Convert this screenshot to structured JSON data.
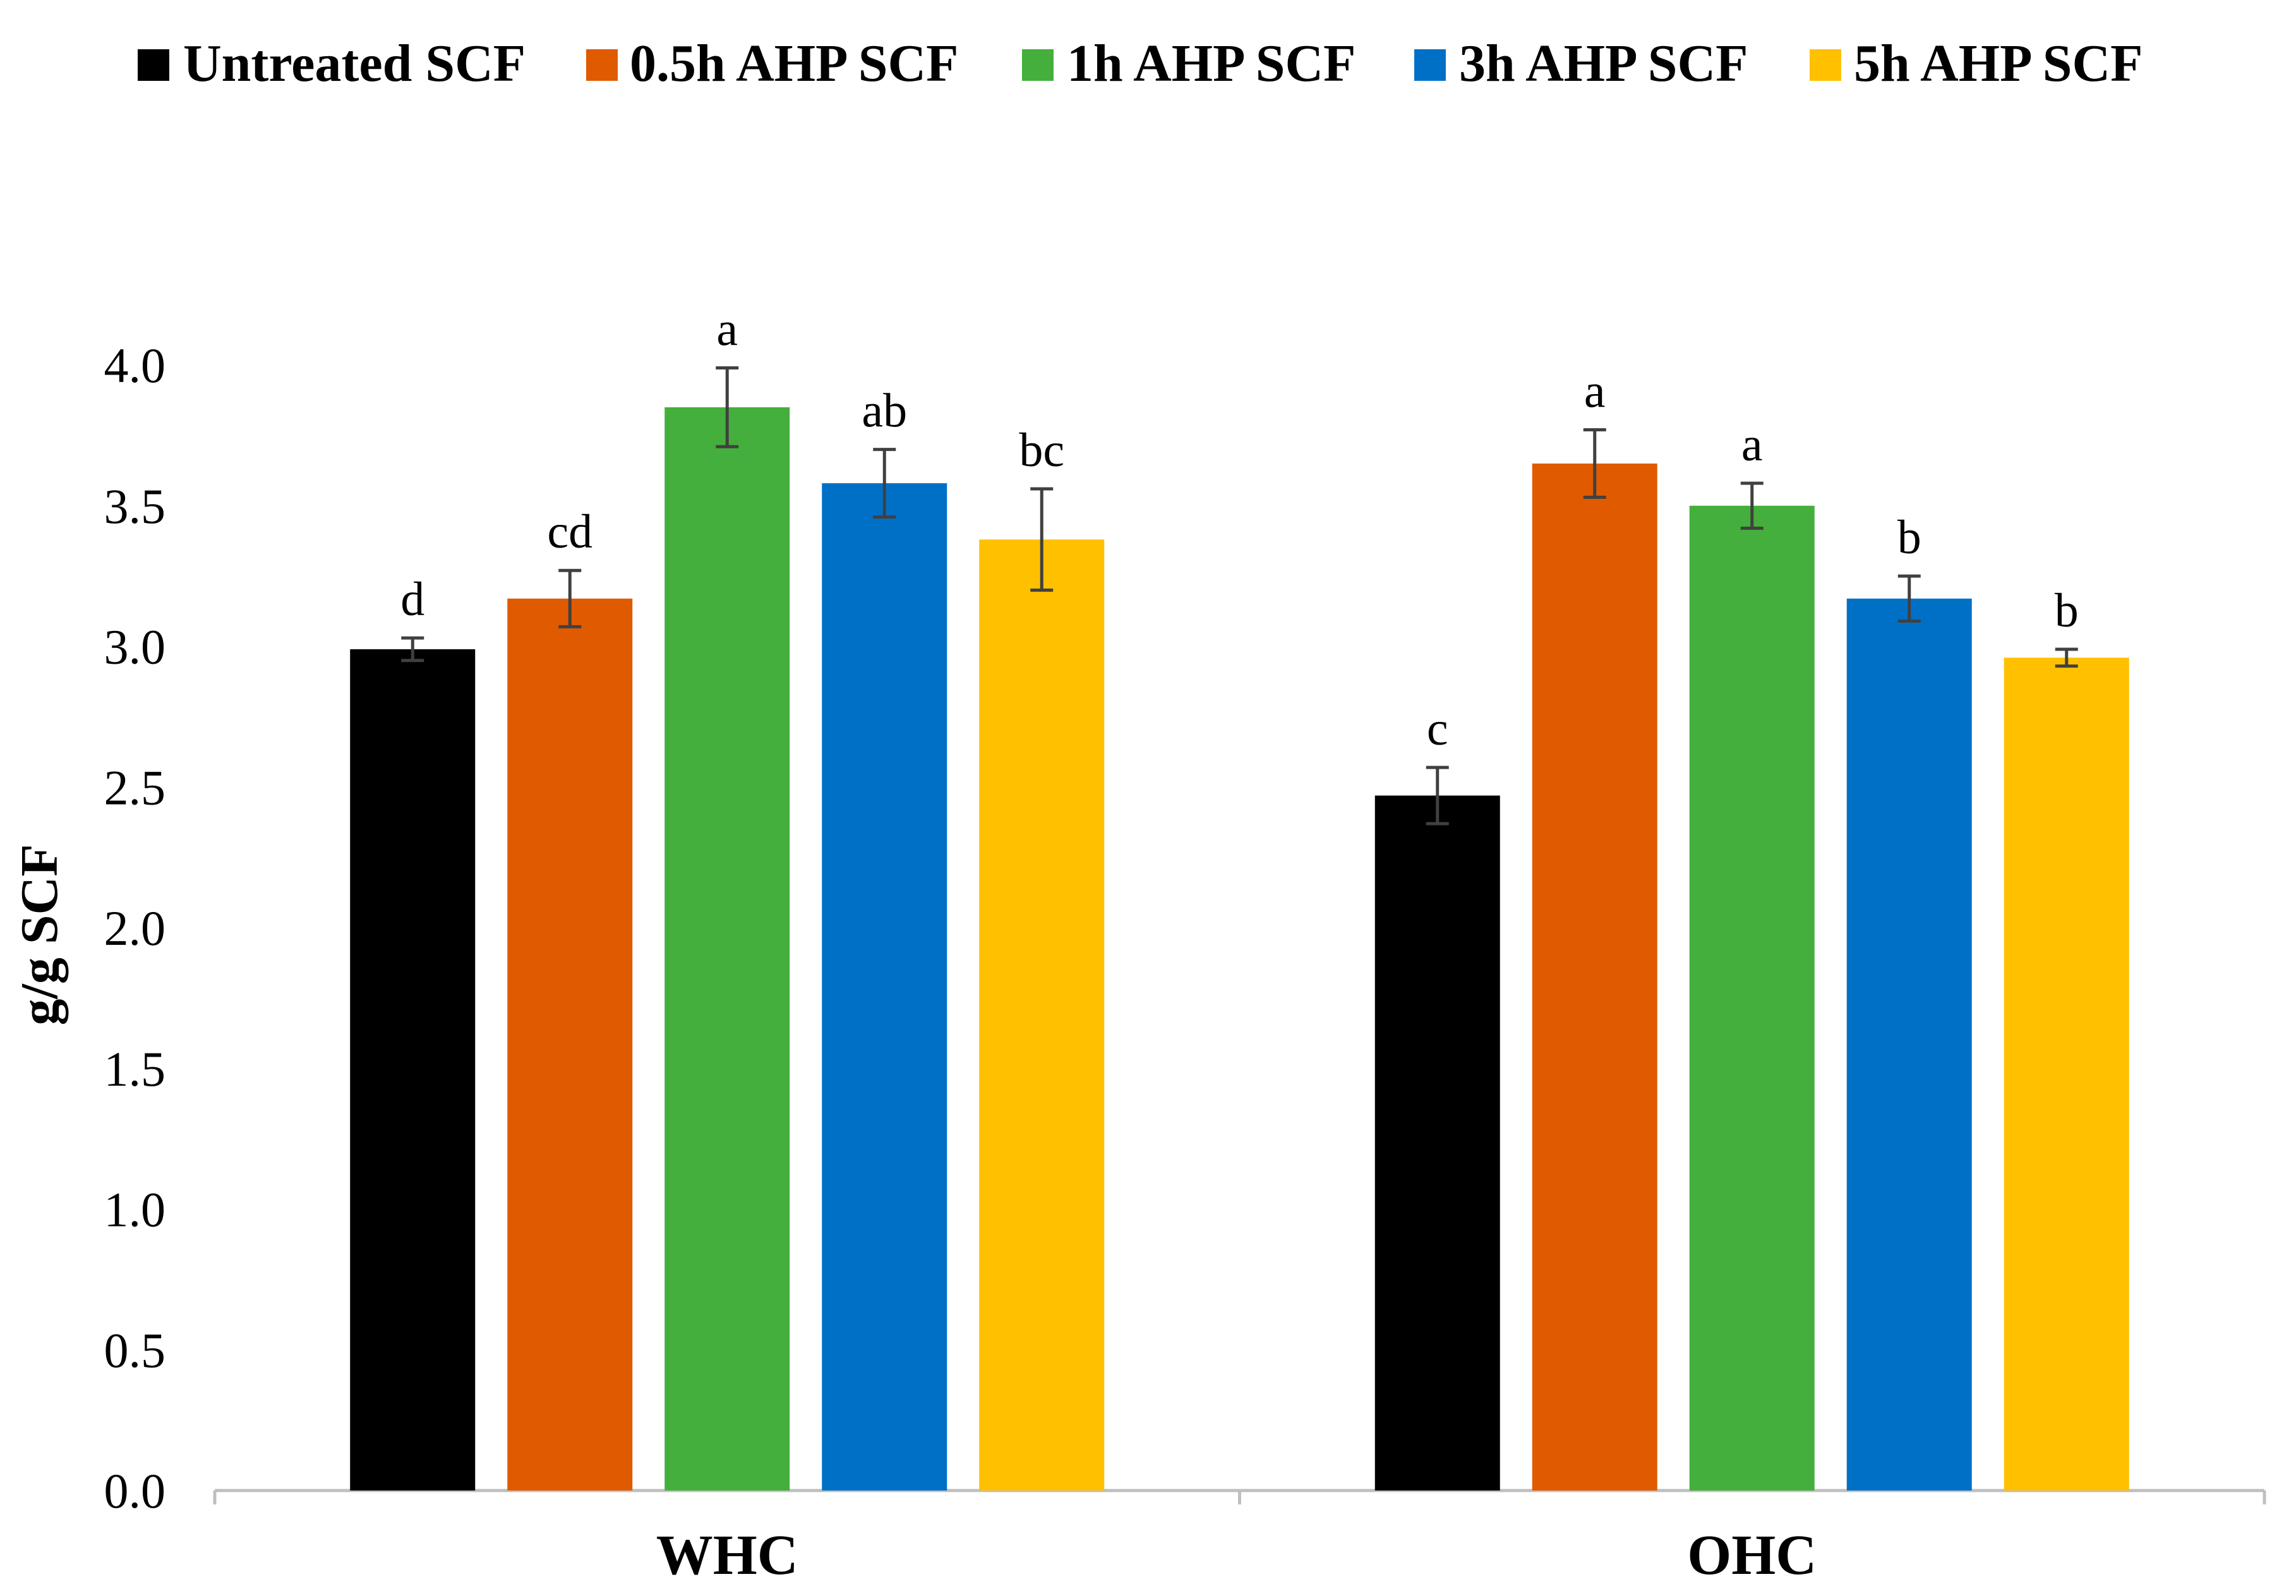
{
  "chart_data": {
    "type": "bar",
    "title": "",
    "xlabel": "",
    "ylabel": "g/g SCF",
    "ylim": [
      0,
      4.0
    ],
    "yticks": [
      "0.0",
      "0.5",
      "1.0",
      "1.5",
      "2.0",
      "2.5",
      "3.0",
      "3.5",
      "4.0"
    ],
    "ytick_values": [
      0,
      0.5,
      1.0,
      1.5,
      2.0,
      2.5,
      3.0,
      3.5,
      4.0
    ],
    "categories": [
      "WHC",
      "OHC"
    ],
    "legend_position": "top",
    "grid": false,
    "series": [
      {
        "name": "Untreated SCF",
        "color": "#000000",
        "values": [
          2.99,
          2.47
        ],
        "errors": [
          0.04,
          0.1
        ],
        "labels": [
          "d",
          "c"
        ]
      },
      {
        "name": "0.5h AHP SCF",
        "color": "#E05A00",
        "values": [
          3.17,
          3.65
        ],
        "errors": [
          0.1,
          0.12
        ],
        "labels": [
          "cd",
          "a"
        ]
      },
      {
        "name": "1h AHP SCF",
        "color": "#44AF3C",
        "values": [
          3.85,
          3.5
        ],
        "errors": [
          0.14,
          0.08
        ],
        "labels": [
          "a",
          "a"
        ]
      },
      {
        "name": "3h AHP SCF",
        "color": "#0070C6",
        "values": [
          3.58,
          3.17
        ],
        "errors": [
          0.12,
          0.08
        ],
        "labels": [
          "ab",
          "b"
        ]
      },
      {
        "name": "5h AHP SCF",
        "color": "#FFC000",
        "values": [
          3.38,
          2.96
        ],
        "errors": [
          0.18,
          0.03
        ],
        "labels": [
          "bc",
          "b"
        ]
      }
    ]
  }
}
